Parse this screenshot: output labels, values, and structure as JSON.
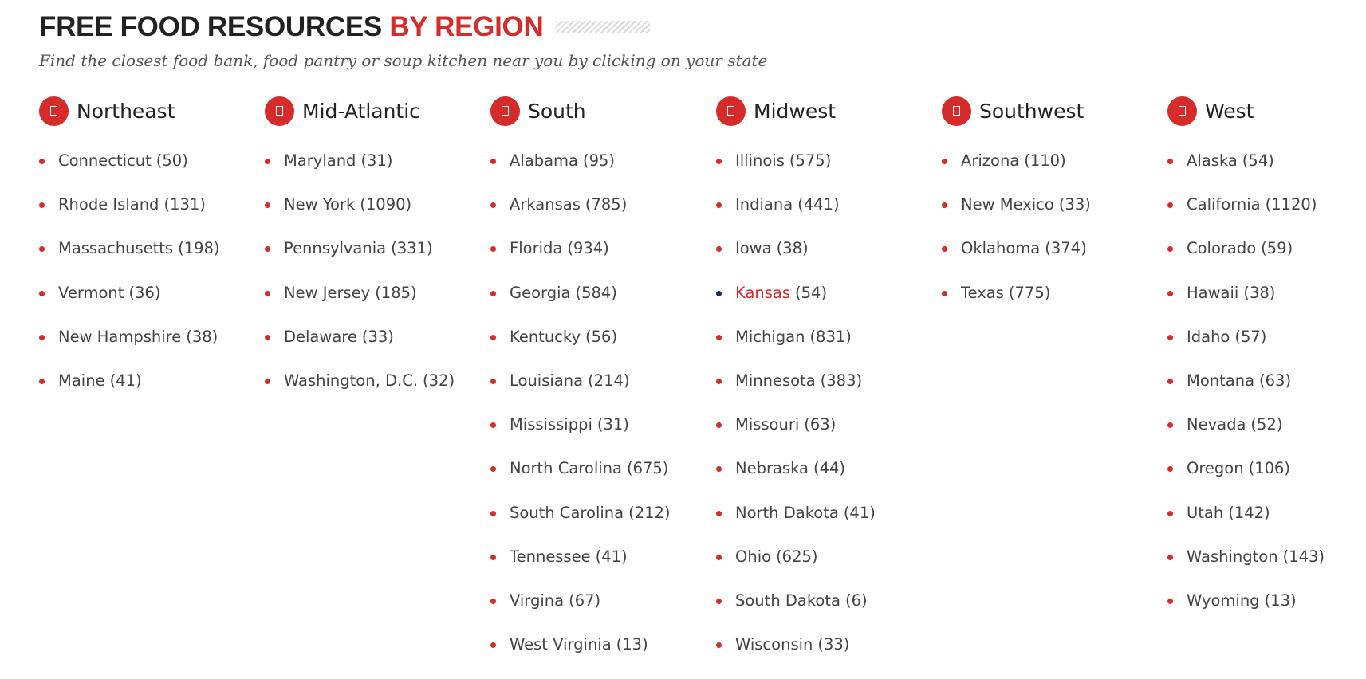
{
  "header": {
    "title_main": "FREE FOOD RESOURCES",
    "title_accent": "BY REGION",
    "subtitle": "Find the closest food bank, food pantry or soup kitchen near you by clicking on your state"
  },
  "colors": {
    "accent": "#d52b2b",
    "active_bullet": "#1e2f6b",
    "text": "#444444",
    "heading": "#222222"
  },
  "regions": [
    {
      "name": "Northeast",
      "icon": "map-marker-icon",
      "states": [
        {
          "name": "Connecticut",
          "count": "(50)"
        },
        {
          "name": "Rhode Island",
          "count": "(131)"
        },
        {
          "name": "Massachusetts",
          "count": "(198)"
        },
        {
          "name": "Vermont",
          "count": "(36)"
        },
        {
          "name": "New Hampshire",
          "count": "(38)"
        },
        {
          "name": "Maine",
          "count": "(41)"
        }
      ]
    },
    {
      "name": "Mid-Atlantic",
      "icon": "map-marker-icon",
      "states": [
        {
          "name": "Maryland",
          "count": "(31)"
        },
        {
          "name": "New York",
          "count": "(1090)"
        },
        {
          "name": "Pennsylvania",
          "count": "(331)"
        },
        {
          "name": "New Jersey",
          "count": "(185)"
        },
        {
          "name": "Delaware",
          "count": "(33)"
        },
        {
          "name": "Washington, D.C.",
          "count": "(32)"
        }
      ]
    },
    {
      "name": "South",
      "icon": "map-marker-icon",
      "states": [
        {
          "name": "Alabama",
          "count": "(95)"
        },
        {
          "name": "Arkansas",
          "count": "(785)"
        },
        {
          "name": "Florida",
          "count": "(934)"
        },
        {
          "name": "Georgia",
          "count": "(584)"
        },
        {
          "name": "Kentucky",
          "count": "(56)"
        },
        {
          "name": "Louisiana",
          "count": "(214)"
        },
        {
          "name": "Mississippi",
          "count": "(31)"
        },
        {
          "name": "North Carolina",
          "count": "(675)"
        },
        {
          "name": "South Carolina",
          "count": "(212)"
        },
        {
          "name": "Tennessee",
          "count": "(41)"
        },
        {
          "name": "Virgina",
          "count": "(67)"
        },
        {
          "name": "West Virginia",
          "count": "(13)"
        }
      ]
    },
    {
      "name": "Midwest",
      "icon": "map-marker-icon",
      "states": [
        {
          "name": "Illinois",
          "count": "(575)"
        },
        {
          "name": "Indiana",
          "count": "(441)"
        },
        {
          "name": "Iowa",
          "count": "(38)"
        },
        {
          "name": "Kansas",
          "count": "(54)",
          "active": true
        },
        {
          "name": "Michigan",
          "count": "(831)"
        },
        {
          "name": "Minnesota",
          "count": "(383)"
        },
        {
          "name": "Missouri",
          "count": "(63)"
        },
        {
          "name": "Nebraska",
          "count": "(44)"
        },
        {
          "name": "North Dakota",
          "count": "(41)"
        },
        {
          "name": "Ohio",
          "count": "(625)"
        },
        {
          "name": "South Dakota",
          "count": "(6)"
        },
        {
          "name": "Wisconsin",
          "count": "(33)"
        }
      ]
    },
    {
      "name": "Southwest",
      "icon": "map-marker-icon",
      "states": [
        {
          "name": "Arizona",
          "count": "(110)"
        },
        {
          "name": "New Mexico",
          "count": "(33)"
        },
        {
          "name": "Oklahoma",
          "count": "(374)"
        },
        {
          "name": "Texas",
          "count": "(775)"
        }
      ]
    },
    {
      "name": "West",
      "icon": "map-marker-icon",
      "states": [
        {
          "name": "Alaska",
          "count": "(54)"
        },
        {
          "name": "California",
          "count": "(1120)"
        },
        {
          "name": "Colorado",
          "count": "(59)"
        },
        {
          "name": "Hawaii",
          "count": "(38)"
        },
        {
          "name": "Idaho",
          "count": "(57)"
        },
        {
          "name": "Montana",
          "count": "(63)"
        },
        {
          "name": "Nevada",
          "count": "(52)"
        },
        {
          "name": "Oregon",
          "count": "(106)"
        },
        {
          "name": "Utah",
          "count": "(142)"
        },
        {
          "name": "Washington",
          "count": "(143)"
        },
        {
          "name": "Wyoming",
          "count": "(13)"
        }
      ]
    }
  ]
}
